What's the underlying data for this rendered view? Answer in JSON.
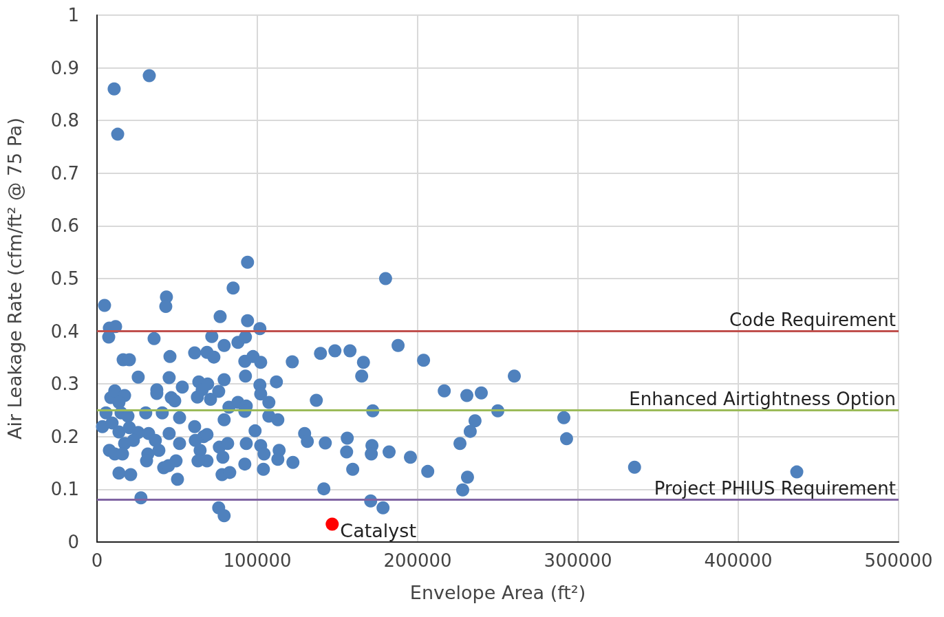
{
  "chart_data": {
    "type": "scatter",
    "xlabel": "Envelope Area (ft²)",
    "ylabel": "Air Leakage Rate (cfm/ft² @ 75 Pa)",
    "xlim": [
      0,
      500000
    ],
    "xticks": [
      0,
      100000,
      200000,
      300000,
      400000,
      500000
    ],
    "ylim": [
      0,
      1
    ],
    "yticks": [
      0,
      0.1,
      0.2,
      0.3,
      0.4,
      0.5,
      0.6,
      0.7,
      0.8,
      0.9,
      1
    ],
    "grid": true,
    "marker": "circle",
    "legend": false,
    "series": [
      {
        "color": "#4f81bd",
        "x": [
          10700,
          32600,
          12900,
          93900,
          84900,
          180000,
          4700,
          43300,
          42900,
          76800,
          93900,
          101600,
          7700,
          11600,
          7300,
          35600,
          71600,
          79300,
          87900,
          92600,
          16300,
          20200,
          45500,
          60900,
          68600,
          72900,
          92200,
          97300,
          102100,
          121800,
          139400,
          148400,
          157800,
          166200,
          187800,
          203700,
          165100,
          25700,
          45000,
          53200,
          63500,
          65600,
          69000,
          79300,
          92600,
          101600,
          111900,
          107200,
          37300,
          37300,
          8600,
          11100,
          17200,
          13700,
          46300,
          48500,
          62600,
          70800,
          75900,
          102100,
          136800,
          260300,
          216600,
          230700,
          239700,
          5600,
          15000,
          19300,
          30400,
          40700,
          51500,
          82300,
          87900,
          93100,
          92200,
          107200,
          112800,
          172000,
          250000,
          235800,
          291200,
          3400,
          9400,
          13700,
          20200,
          25700,
          32200,
          36400,
          45000,
          60900,
          66500,
          68600,
          79300,
          98600,
          129500,
          131200,
          142400,
          156100,
          171500,
          232800,
          292900,
          226400,
          7700,
          11100,
          17200,
          22700,
          15900,
          31700,
          38600,
          51500,
          61300,
          64300,
          68600,
          63000,
          76300,
          78500,
          81500,
          93100,
          102100,
          104200,
          113600,
          112800,
          122200,
          92200,
          155700,
          171100,
          182200,
          195500,
          30900,
          49300,
          41600,
          44600,
          50200,
          13700,
          21000,
          78000,
          82800,
          103800,
          159500,
          206300,
          231100,
          335300,
          436500,
          141500,
          228100,
          27400,
          170700,
          75900,
          79300,
          178400
        ],
        "values": [
          0.86,
          0.885,
          0.774,
          0.531,
          0.482,
          0.5,
          0.449,
          0.465,
          0.447,
          0.428,
          0.42,
          0.405,
          0.406,
          0.409,
          0.389,
          0.386,
          0.39,
          0.373,
          0.379,
          0.389,
          0.346,
          0.346,
          0.352,
          0.359,
          0.36,
          0.351,
          0.343,
          0.352,
          0.341,
          0.342,
          0.358,
          0.363,
          0.363,
          0.341,
          0.373,
          0.345,
          0.315,
          0.313,
          0.312,
          0.294,
          0.304,
          0.289,
          0.3,
          0.308,
          0.315,
          0.298,
          0.304,
          0.265,
          0.289,
          0.282,
          0.274,
          0.287,
          0.278,
          0.265,
          0.274,
          0.268,
          0.275,
          0.271,
          0.286,
          0.281,
          0.269,
          0.315,
          0.287,
          0.278,
          0.283,
          0.245,
          0.245,
          0.239,
          0.245,
          0.245,
          0.236,
          0.256,
          0.265,
          0.258,
          0.248,
          0.239,
          0.232,
          0.249,
          0.249,
          0.23,
          0.236,
          0.219,
          0.226,
          0.209,
          0.217,
          0.208,
          0.206,
          0.193,
          0.206,
          0.219,
          0.2,
          0.204,
          0.232,
          0.211,
          0.206,
          0.191,
          0.188,
          0.197,
          0.183,
          0.21,
          0.196,
          0.187,
          0.174,
          0.167,
          0.187,
          0.193,
          0.167,
          0.167,
          0.174,
          0.187,
          0.193,
          0.174,
          0.154,
          0.154,
          0.18,
          0.161,
          0.187,
          0.187,
          0.183,
          0.167,
          0.174,
          0.157,
          0.151,
          0.148,
          0.171,
          0.167,
          0.171,
          0.161,
          0.154,
          0.154,
          0.141,
          0.145,
          0.119,
          0.131,
          0.128,
          0.128,
          0.132,
          0.138,
          0.138,
          0.134,
          0.123,
          0.142,
          0.133,
          0.101,
          0.099,
          0.084,
          0.078,
          0.065,
          0.05,
          0.065
        ]
      },
      {
        "name": "Catalyst",
        "color": "#ff0000",
        "x": [
          146700
        ],
        "values": [
          0.034
        ]
      }
    ],
    "ref_lines": [
      {
        "axis": "y",
        "value": 0.4,
        "label": "Code Requirement",
        "color": "#c0504d"
      },
      {
        "axis": "y",
        "value": 0.25,
        "label": "Enhanced Airtightness Option",
        "color": "#9bbb59"
      },
      {
        "axis": "y",
        "value": 0.08,
        "label": "Project PHIUS Requirement",
        "color": "#8064a2"
      }
    ]
  }
}
